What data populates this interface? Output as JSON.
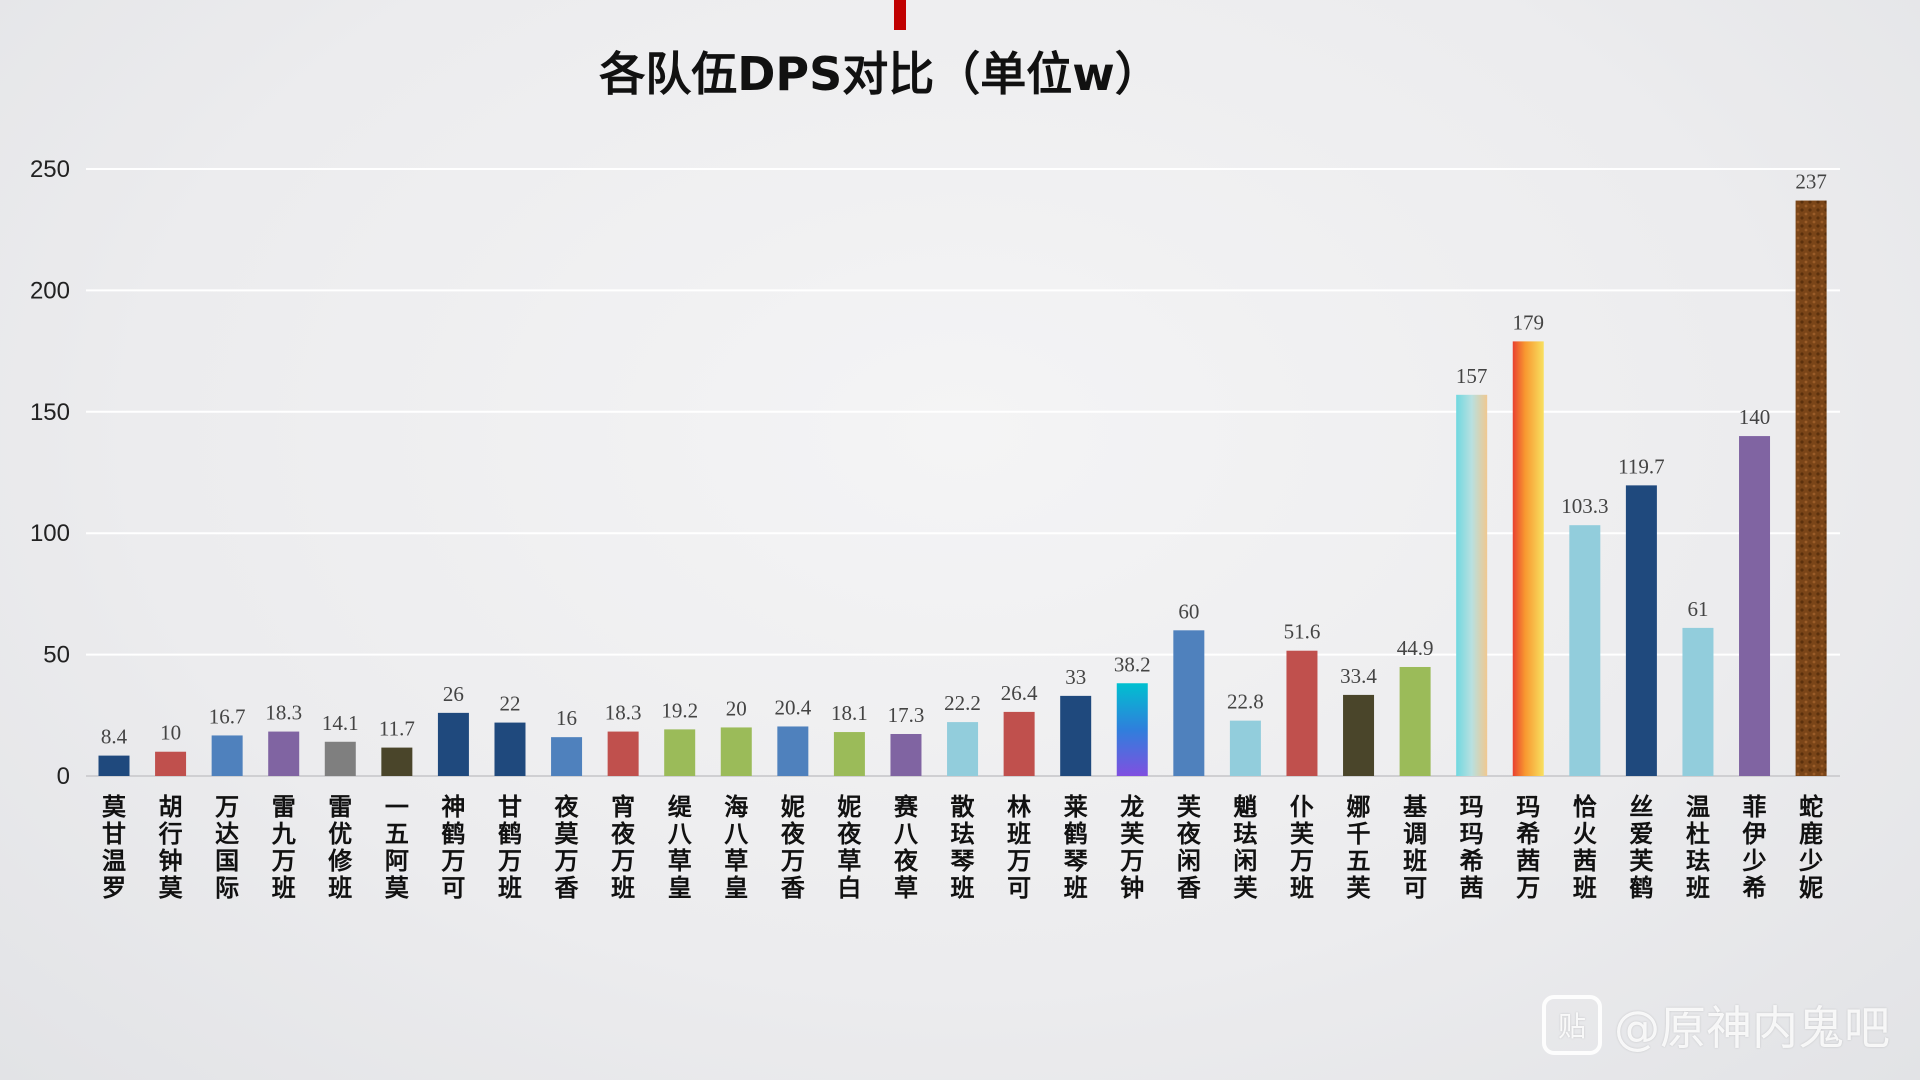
{
  "chart_data": {
    "type": "bar",
    "title": "各队伍DPS对比（单位w）",
    "xlabel": "",
    "ylabel": "",
    "ylim": [
      0,
      250
    ],
    "yticks": [
      0,
      50,
      100,
      150,
      200,
      250
    ],
    "grid": true,
    "categories": [
      "莫甘温罗",
      "胡行钟莫",
      "万达国际",
      "雷九万班",
      "雷优修班",
      "一五阿莫",
      "神鹤万可",
      "甘鹤万班",
      "夜莫万香",
      "宵夜万班",
      "缇八草皇",
      "海八草皇",
      "妮夜万香",
      "妮夜草白",
      "赛八夜草",
      "散珐琴班",
      "林班万可",
      "莱鹤琴班",
      "龙芙万钟",
      "芙夜闲香",
      "魈珐闲芙",
      "仆芙万班",
      "娜千五芙",
      "基调班可",
      "玛玛希茜",
      "玛希茜万",
      "恰火茜班",
      "丝爱芙鹤",
      "温杜珐班",
      "菲伊少希",
      "蛇鹿少妮"
    ],
    "values": [
      8.4,
      10,
      16.7,
      18.3,
      14.1,
      11.7,
      26,
      22,
      16,
      18.3,
      19.2,
      20,
      20.4,
      18.1,
      17.3,
      22.2,
      26.4,
      33,
      38.2,
      60,
      22.8,
      51.6,
      33.4,
      44.9,
      157,
      179,
      103.3,
      119.7,
      61,
      140,
      237
    ],
    "value_labels": [
      "8.4",
      "10",
      "16.7",
      "18.3",
      "14.1",
      "11.7",
      "26",
      "22",
      "16",
      "18.3",
      "19.2",
      "20",
      "20.4",
      "18.1",
      "17.3",
      "22.2",
      "26.4",
      "33",
      "38.2",
      "60",
      "22.8",
      "51.6",
      "33.4",
      "44.9",
      "157",
      "179",
      "103.3",
      "119.7",
      "61",
      "140",
      "237"
    ],
    "colors": [
      "#1f497d",
      "#c0504d",
      "#4f81bd",
      "#8064a2",
      "#7f7f7f",
      "#4a452a",
      "#1f497d",
      "#1f497d",
      "#4f81bd",
      "#c0504d",
      "#9bbb59",
      "#9bbb59",
      "#4f81bd",
      "#9bbb59",
      "#8064a2",
      "#92cddc",
      "#c0504d",
      "#1f497d",
      "grad-cyan-purple",
      "#4f81bd",
      "#92cddc",
      "#c0504d",
      "#4a452a",
      "#9bbb59",
      "grad-cyan-peach",
      "grad-red-yellow",
      "#92cddc",
      "#1f497d",
      "#92cddc",
      "#8064a2",
      "texture-brown"
    ]
  },
  "watermark": {
    "icon": "tieba-icon",
    "icon_glyph": "贴",
    "text": "@原神内鬼吧"
  }
}
